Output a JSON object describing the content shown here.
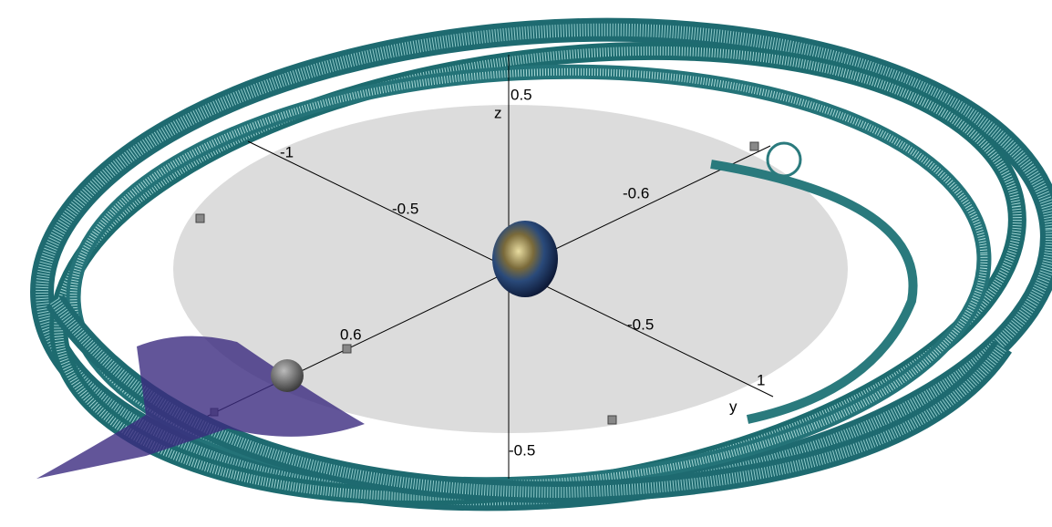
{
  "axes": {
    "z_label": "z",
    "y_label": "y"
  },
  "tick_labels": {
    "z_top": "0.5",
    "z_bottom": "-0.5",
    "a_far": "-1",
    "a_mid": "-0.5",
    "b_far": "-0.6",
    "b_near": "0.6",
    "c_mid": "-0.5",
    "c_near": "1"
  }
}
